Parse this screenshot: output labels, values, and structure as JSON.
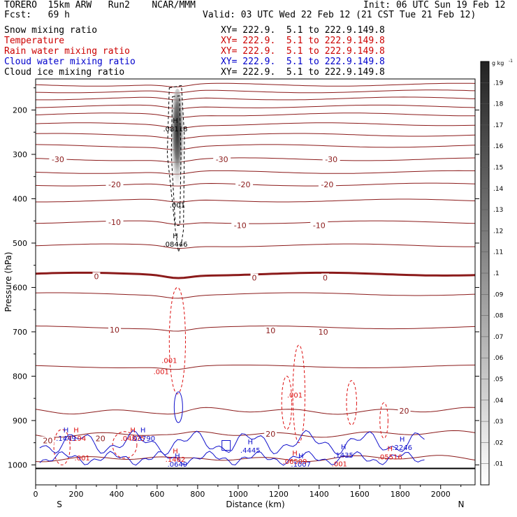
{
  "header": {
    "model": "TORERO  15km ARW   Run2    NCAR/MMM",
    "init": "Init: 06 UTC Sun 19 Feb 12",
    "fcst": "Fcst:   69 h",
    "valid": "Valid: 03 UTC Wed 22 Feb 12 (21 CST Tue 21 Feb 12)"
  },
  "legend": [
    {
      "label": "Snow mixing ratio",
      "xy": "XY= 222.9.  5.1 to 222.9.149.8",
      "color": "#000000"
    },
    {
      "label": "Temperature",
      "xy": "XY= 222.9.  5.1 to 222.9.149.8",
      "color": "#cc0000"
    },
    {
      "label": "Rain water mixing ratio",
      "xy": "XY= 222.9.  5.1 to 222.9.149.8",
      "color": "#cc0000"
    },
    {
      "label": "Cloud water mixing ratio",
      "xy": "XY= 222.9.  5.1 to 222.9.149.8",
      "color": "#0000cc"
    },
    {
      "label": "Cloud ice mixing ratio",
      "xy": "XY= 222.9.  5.1 to 222.9.149.8",
      "color": "#000000"
    }
  ],
  "chart_data": {
    "type": "contour",
    "xlabel": "Distance (km)",
    "ylabel": "Pressure (hPa)",
    "xlim": [
      0,
      2170
    ],
    "ylim": [
      1045,
      130
    ],
    "x_ticks": [
      0,
      200,
      400,
      600,
      800,
      1000,
      1200,
      1400,
      1600,
      1800,
      2000
    ],
    "y_ticks": [
      200,
      300,
      400,
      500,
      600,
      700,
      800,
      900,
      1000
    ],
    "left_end": "S",
    "right_end": "N",
    "colorbar": {
      "unit": "g kg",
      "unit_exp": "-1",
      "ticks": [
        ".01",
        ".02",
        ".03",
        ".04",
        ".05",
        ".06",
        ".07",
        ".08",
        ".09",
        ".1",
        ".11",
        ".12",
        ".13",
        ".14",
        ".15",
        ".16",
        ".17",
        ".18",
        ".19"
      ]
    },
    "temperature": {
      "units": "deg C",
      "isotherm_interval": 5,
      "isotherms_hpa": [
        {
          "t": -70,
          "p": 143
        },
        {
          "t": -65,
          "p": 158
        },
        {
          "t": -60,
          "p": 174
        },
        {
          "t": -55,
          "p": 192
        },
        {
          "t": -50,
          "p": 210
        },
        {
          "t": -45,
          "p": 232
        },
        {
          "t": -40,
          "p": 256
        },
        {
          "t": -35,
          "p": 281
        },
        {
          "t": -30,
          "p": 311
        },
        {
          "t": -25,
          "p": 340
        },
        {
          "t": -20,
          "p": 368
        },
        {
          "t": -15,
          "p": 404
        },
        {
          "t": -10,
          "p": 453
        },
        {
          "t": -5,
          "p": 505
        },
        {
          "t": 0,
          "p": 570
        },
        {
          "t": 5,
          "p": 615
        },
        {
          "t": 10,
          "p": 690
        },
        {
          "t": 15,
          "p": 778
        },
        {
          "t": 20,
          "p": 878
        },
        {
          "t": 25,
          "p": 930
        },
        {
          "t": 30,
          "p": 985
        }
      ],
      "labels": [
        {
          "text": "-30",
          "x": 110,
          "p": 311
        },
        {
          "text": "-30",
          "x": 920,
          "p": 311
        },
        {
          "text": "-30",
          "x": 1460,
          "p": 311
        },
        {
          "text": "-20",
          "x": 390,
          "p": 368
        },
        {
          "text": "-20",
          "x": 1030,
          "p": 368
        },
        {
          "text": "-20",
          "x": 1440,
          "p": 368
        },
        {
          "text": "-10",
          "x": 390,
          "p": 453
        },
        {
          "text": "-10",
          "x": 1010,
          "p": 460
        },
        {
          "text": "-10",
          "x": 1400,
          "p": 460
        },
        {
          "text": "0",
          "x": 300,
          "p": 575
        },
        {
          "text": "0",
          "x": 1080,
          "p": 578
        },
        {
          "text": "0",
          "x": 1430,
          "p": 578
        },
        {
          "text": "10",
          "x": 390,
          "p": 695
        },
        {
          "text": "10",
          "x": 1160,
          "p": 697
        },
        {
          "text": "10",
          "x": 1420,
          "p": 700
        },
        {
          "text": "20",
          "x": 1820,
          "p": 878
        },
        {
          "text": "20",
          "x": 1160,
          "p": 930
        },
        {
          "text": "20",
          "x": 60,
          "p": 945
        },
        {
          "text": "20",
          "x": 320,
          "p": 940
        }
      ]
    },
    "cloud_ice": {
      "max_label": "H",
      "max_value": ".08118",
      "x": 690,
      "p": 240,
      "min_contour": ".001"
    },
    "snow": {
      "max_label": "H",
      "max_value": ".08446",
      "x": 690,
      "p": 500
    },
    "rain_water": {
      "min_contour": ".001",
      "maxima": [
        {
          "label": "H",
          "value": ".1194",
          "x": 200,
          "p": 938
        },
        {
          "label": "H",
          "value": ".04875",
          "x": 480,
          "p": 938
        },
        {
          "label": "H",
          "value": ".1462",
          "x": 690,
          "p": 985
        },
        {
          "label": "H",
          "value": ".06509",
          "x": 1280,
          "p": 990
        },
        {
          "label": "H",
          "value": ".05516",
          "x": 1750,
          "p": 980
        }
      ],
      "contour_labels": [
        {
          "text": ".001",
          "x": 660,
          "p": 770
        },
        {
          "text": ".001",
          "x": 620,
          "p": 795
        },
        {
          "text": ".001",
          "x": 1280,
          "p": 848
        },
        {
          "text": ".001",
          "x": 230,
          "p": 990
        },
        {
          "text": ".001",
          "x": 1500,
          "p": 1003
        }
      ]
    },
    "cloud_water": {
      "maxima": [
        {
          "label": "H",
          "value": ".1449",
          "x": 150,
          "p": 938
        },
        {
          "label": "H",
          "value": ".03790",
          "x": 530,
          "p": 938
        },
        {
          "label": "H",
          "value": ".0649",
          "x": 700,
          "p": 996
        },
        {
          "label": "H",
          "value": ".4445",
          "x": 1060,
          "p": 965
        },
        {
          "label": "H",
          "value": ".1007",
          "x": 1310,
          "p": 996
        },
        {
          "label": "H",
          "value": ".1435",
          "x": 1520,
          "p": 976
        },
        {
          "label": "H",
          "value": ".2246",
          "x": 1810,
          "p": 958
        }
      ]
    }
  }
}
